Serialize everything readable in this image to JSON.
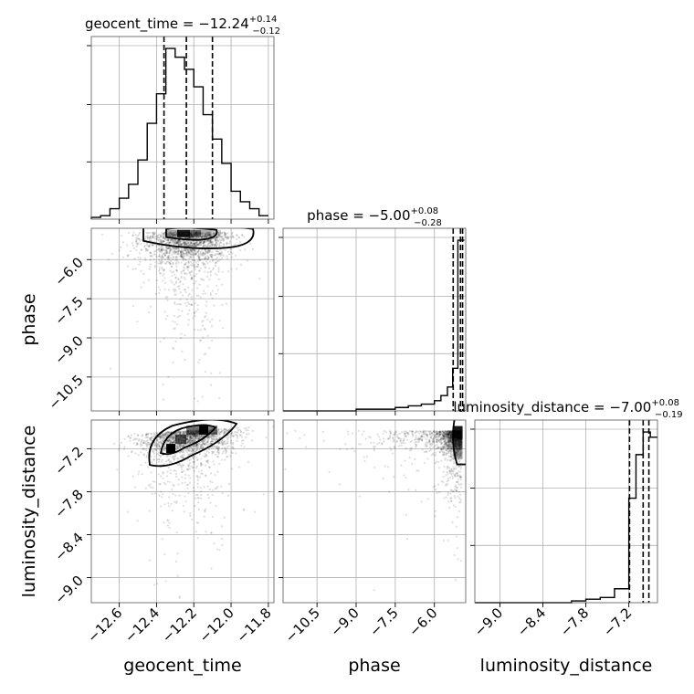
{
  "chart_data": {
    "type": "corner",
    "parameters": [
      "geocent_time",
      "phase",
      "luminosity_distance"
    ],
    "axis_labels": {
      "geocent_time": "geocent_time",
      "phase": "phase",
      "luminosity_distance": "luminosity_distance"
    },
    "ranges": {
      "geocent_time": [
        -12.75,
        -11.77
      ],
      "phase": [
        -11.8,
        -4.8
      ],
      "luminosity_distance": [
        -9.35,
        -6.8
      ]
    },
    "ticks": {
      "geocent_time": [
        "−12.6",
        "−12.4",
        "−12.2",
        "−12.0",
        "−11.8"
      ],
      "phase": [
        "−10.5",
        "−9.0",
        "−7.5",
        "−6.0"
      ],
      "luminosity_distance": [
        "−9.0",
        "−8.4",
        "−7.8",
        "−7.2"
      ]
    },
    "tick_values": {
      "geocent_time": [
        -12.6,
        -12.4,
        -12.2,
        -12.0,
        -11.8
      ],
      "phase": [
        -10.5,
        -9.0,
        -7.5,
        -6.0
      ],
      "luminosity_distance": [
        -9.0,
        -8.4,
        -7.8,
        -7.2
      ]
    },
    "titles": {
      "geocent_time": {
        "prefix": "geocent_time = ",
        "median": "−12.24",
        "plus": "+0.14",
        "minus": "−0.12"
      },
      "phase": {
        "prefix": "phase = ",
        "median": "−5.00",
        "plus": "+0.08",
        "minus": "−0.28"
      },
      "luminosity_distance": {
        "prefix": "luminosity_distance = ",
        "median": "−7.00",
        "plus": "+0.08",
        "minus": "−0.19"
      }
    },
    "quantiles": {
      "geocent_time": [
        -12.36,
        -12.24,
        -12.1
      ],
      "phase": [
        -5.28,
        -5.0,
        -4.92
      ],
      "luminosity_distance": [
        -7.19,
        -7.0,
        -6.92
      ]
    },
    "histograms": {
      "geocent_time": {
        "edges": [
          -12.75,
          -12.7,
          -12.65,
          -12.6,
          -12.55,
          -12.5,
          -12.45,
          -12.4,
          -12.35,
          -12.3,
          -12.25,
          -12.2,
          -12.15,
          -12.1,
          -12.05,
          -12.0,
          -11.95,
          -11.9,
          -11.85,
          -11.8
        ],
        "counts": [
          1,
          2,
          6,
          12,
          20,
          34,
          55,
          72,
          98,
          93,
          86,
          76,
          60,
          46,
          32,
          16,
          10,
          6,
          2
        ]
      },
      "phase": {
        "edges": [
          -11.8,
          -9.0,
          -8.5,
          -8.0,
          -7.5,
          -7.0,
          -6.5,
          -6.0,
          -5.75,
          -5.5,
          -5.3,
          -5.1,
          -4.95,
          -4.85
        ],
        "counts": [
          0,
          1,
          1,
          1,
          2,
          3,
          4,
          6,
          9,
          14,
          25,
          100,
          100
        ]
      },
      "luminosity_distance": {
        "edges": [
          -9.35,
          -8.0,
          -7.8,
          -7.6,
          -7.4,
          -7.2,
          -7.1,
          -7.0,
          -6.9,
          -6.8
        ],
        "counts": [
          0,
          1,
          2,
          3,
          8,
          60,
          85,
          98,
          95
        ]
      }
    }
  }
}
